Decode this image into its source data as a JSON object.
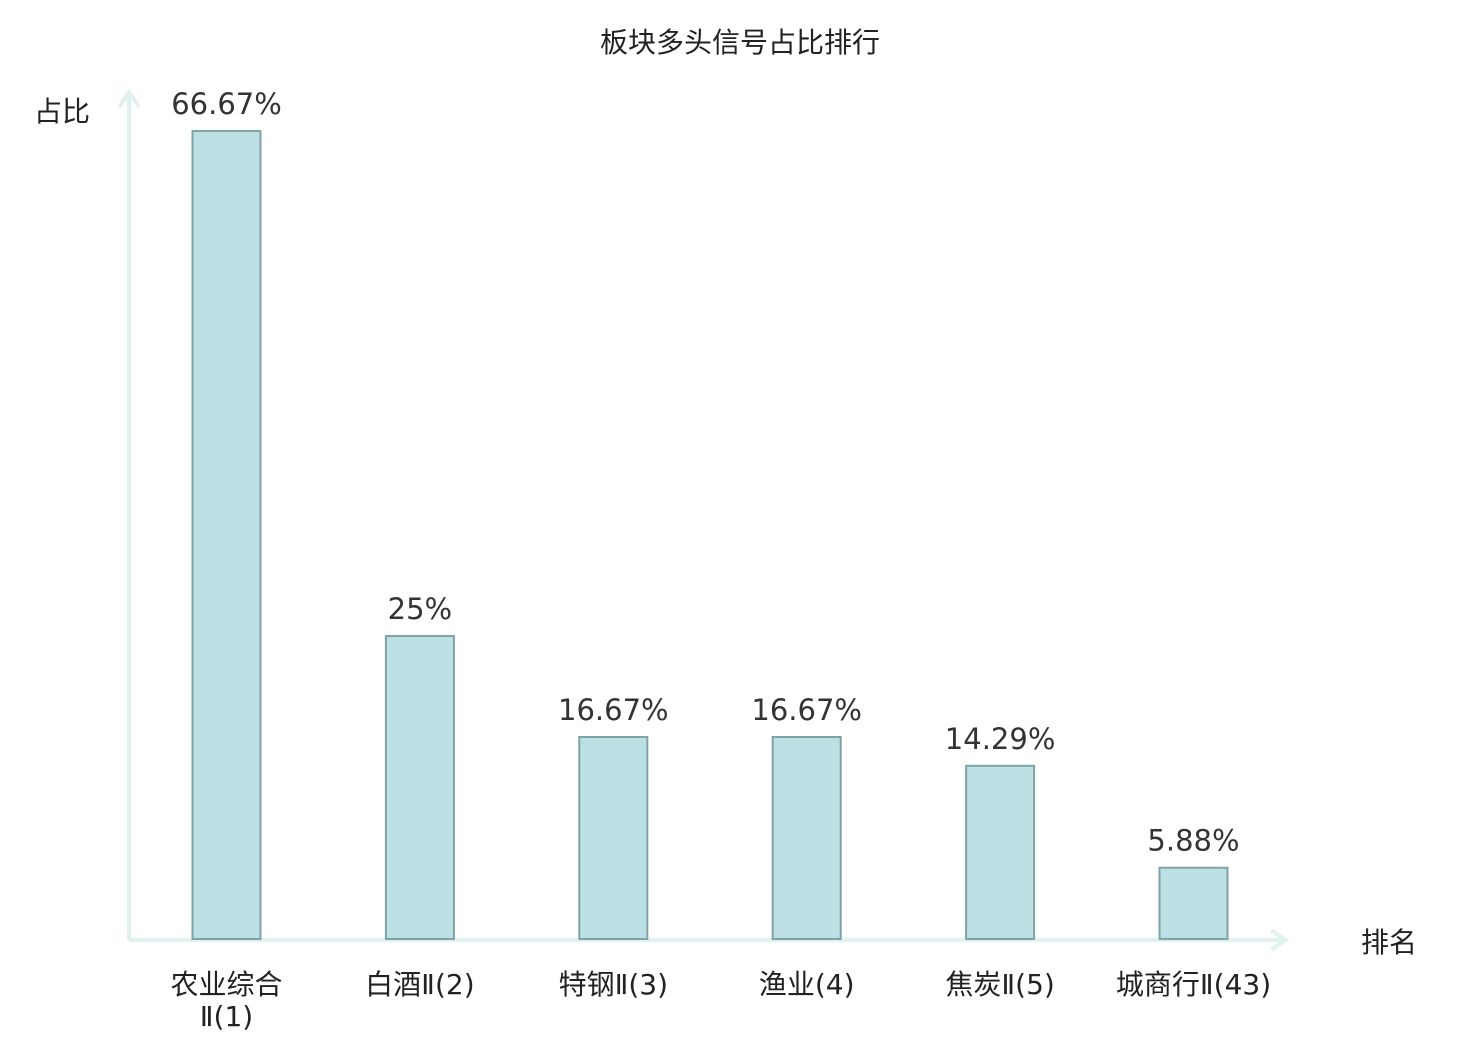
{
  "chart_data": {
    "type": "bar",
    "title": "板块多头信号占比排行",
    "ylabel": "占比",
    "xlabel": "排名",
    "ylim": [
      0,
      70
    ],
    "grid": false,
    "categories": [
      {
        "name": "农业综合",
        "rank": "Ⅱ(1)",
        "highlight": false
      },
      {
        "name": "白酒",
        "rank": "Ⅱ(2)",
        "highlight": false
      },
      {
        "name": "特钢",
        "rank": "Ⅱ(3)",
        "highlight": false
      },
      {
        "name": "渔业",
        "rank": "(4)",
        "highlight": false
      },
      {
        "name": "焦炭",
        "rank": "Ⅱ(5)",
        "highlight": false
      },
      {
        "name": "城商行",
        "rank": "Ⅱ(43)",
        "highlight": true
      }
    ],
    "values": [
      66.67,
      25,
      16.67,
      16.67,
      14.29,
      5.88
    ],
    "value_labels": [
      "66.67%",
      "25%",
      "16.67%",
      "16.67%",
      "14.29%",
      "5.88%"
    ],
    "colors": {
      "bar_fill": "#bce0e3",
      "bar_stroke": "#7fa3a6",
      "axis": "#e0f2ef",
      "highlight_text": "#e00000",
      "text": "#222222"
    }
  }
}
